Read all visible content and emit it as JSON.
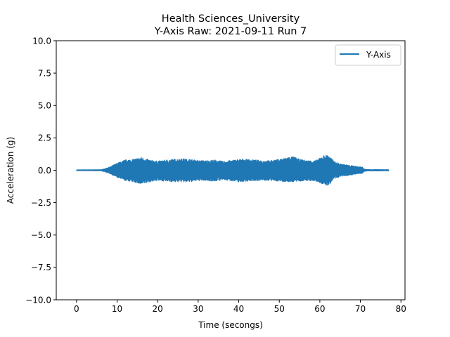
{
  "chart_data": {
    "type": "line",
    "title_line1": "Health Sciences_University",
    "title_line2": "Y-Axis Raw: 2021-09-11 Run 7",
    "xlabel": "Time (secongs)",
    "ylabel": "Acceleration (g)",
    "xlim": [
      -5,
      81
    ],
    "ylim": [
      -10,
      10
    ],
    "x_ticks": [
      0,
      10,
      20,
      30,
      40,
      50,
      60,
      70,
      80
    ],
    "x_tick_labels": [
      "0",
      "10",
      "20",
      "30",
      "40",
      "50",
      "60",
      "70",
      "80"
    ],
    "y_ticks": [
      -10,
      -7.5,
      -5,
      -2.5,
      0,
      2.5,
      5,
      7.5,
      10
    ],
    "y_tick_labels": [
      "−10.0",
      "−7.5",
      "−5.0",
      "−2.5",
      "0.0",
      "2.5",
      "5.0",
      "7.5",
      "10.0"
    ],
    "grid": false,
    "legend_position": "top-right",
    "series": [
      {
        "name": "Y-Axis",
        "color": "#1f77b4",
        "x_range": [
          0,
          77
        ],
        "envelope": {
          "t": [
            0,
            6,
            7,
            8.5,
            10,
            12,
            14,
            16,
            18,
            20,
            22,
            24,
            26,
            28,
            30,
            32,
            34,
            36,
            38,
            40,
            42,
            44,
            46,
            48,
            50,
            52,
            53.5,
            55,
            57,
            59,
            61,
            62,
            63.5,
            65,
            67,
            69,
            70.5,
            71,
            72,
            74,
            77
          ],
          "upper": [
            0.03,
            0.04,
            0.12,
            0.3,
            0.55,
            0.8,
            0.85,
            1.0,
            0.8,
            0.7,
            0.8,
            0.85,
            0.9,
            0.85,
            0.75,
            0.75,
            0.8,
            0.7,
            0.75,
            0.85,
            0.85,
            0.8,
            0.75,
            0.75,
            0.85,
            1.0,
            1.05,
            0.85,
            0.75,
            0.75,
            1.15,
            1.2,
            0.7,
            0.5,
            0.4,
            0.3,
            0.25,
            0.08,
            0.05,
            0.05,
            0.04
          ],
          "lower": [
            -0.03,
            -0.04,
            -0.12,
            -0.3,
            -0.55,
            -0.8,
            -0.9,
            -1.1,
            -0.9,
            -0.8,
            -0.85,
            -0.9,
            -0.9,
            -0.9,
            -0.8,
            -0.8,
            -0.85,
            -0.75,
            -0.8,
            -0.9,
            -0.85,
            -0.8,
            -0.8,
            -0.8,
            -0.85,
            -0.9,
            -0.9,
            -0.85,
            -0.8,
            -0.85,
            -1.1,
            -1.2,
            -0.7,
            -0.5,
            -0.4,
            -0.3,
            -0.25,
            -0.08,
            -0.05,
            -0.05,
            -0.04
          ]
        }
      }
    ]
  }
}
